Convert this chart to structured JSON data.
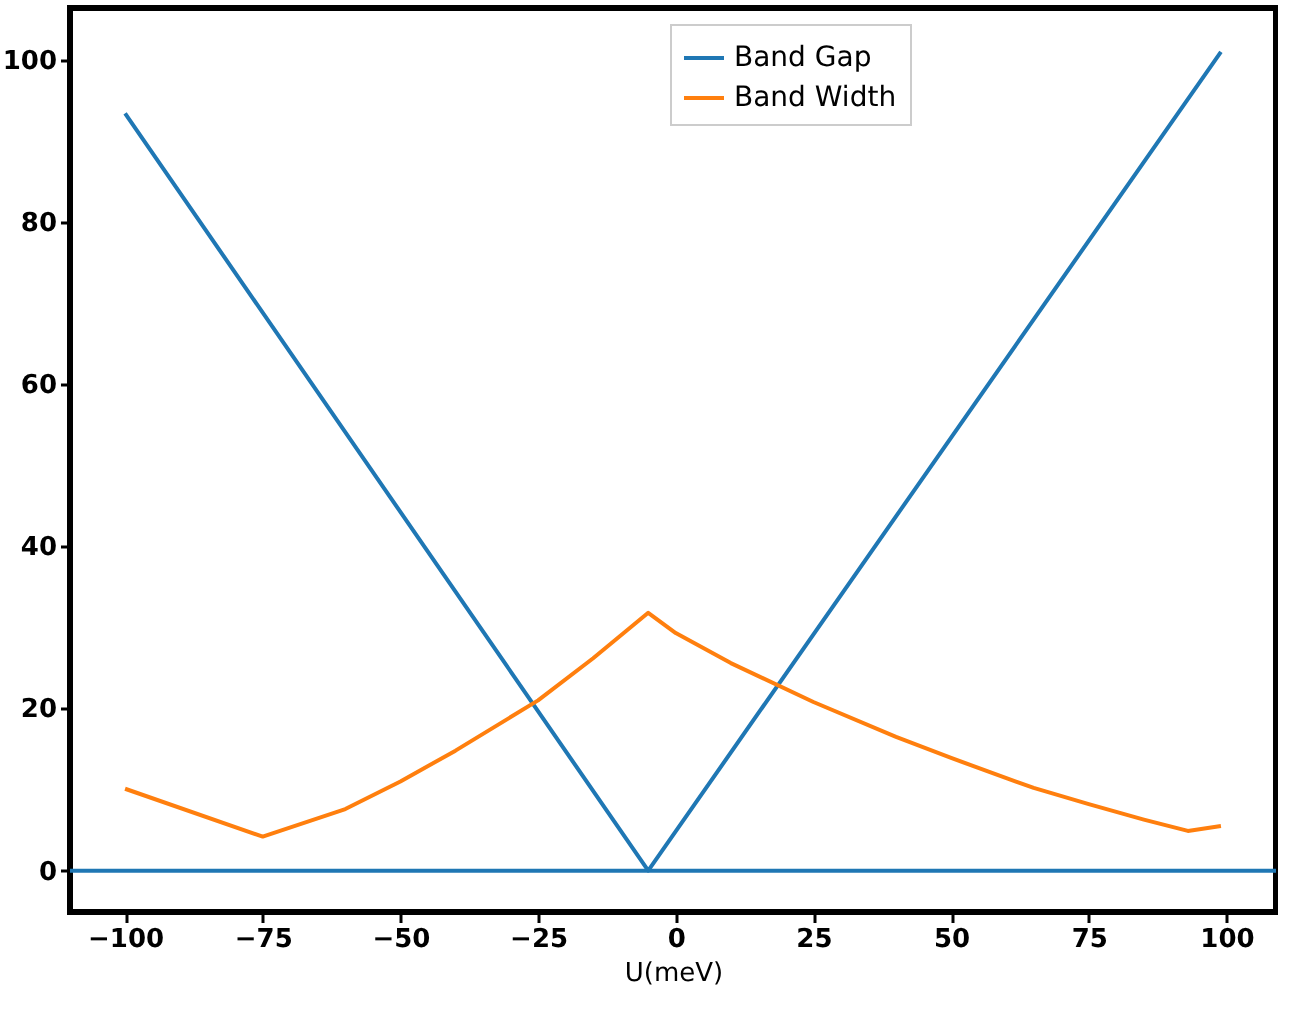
{
  "chart_data": {
    "type": "line",
    "xlabel": "U(meV)",
    "xlim": [
      -110,
      109
    ],
    "ylim": [
      -5.1,
      106.4
    ],
    "xticks": [
      -100,
      -75,
      -50,
      -25,
      0,
      25,
      50,
      75,
      100
    ],
    "yticks": [
      0,
      20,
      40,
      60,
      80,
      100
    ],
    "grid": false,
    "legend": "top",
    "line_style": "solid",
    "marker": "none",
    "series": [
      {
        "name": "Band Gap",
        "color": "#1f77b4",
        "x": [
          -100,
          -5,
          99
        ],
        "values": [
          93.4,
          0,
          101
        ]
      },
      {
        "name": "Band Width",
        "color": "#ff7f0e",
        "x": [
          -100,
          -75,
          -60,
          -50,
          -40,
          -25,
          -15,
          -5,
          0,
          10,
          25,
          40,
          50,
          65,
          75,
          85,
          93,
          99
        ],
        "values": [
          10.1,
          4.2,
          7.6,
          11,
          14.8,
          21,
          26.2,
          31.8,
          29.3,
          25.6,
          20.8,
          16.5,
          13.9,
          10.2,
          8.2,
          6.3,
          4.9,
          5.5
        ]
      }
    ],
    "ref_lines": [
      {
        "axis": "y",
        "value": 0,
        "color": "#1f77b4",
        "line_style": "solid"
      }
    ]
  }
}
